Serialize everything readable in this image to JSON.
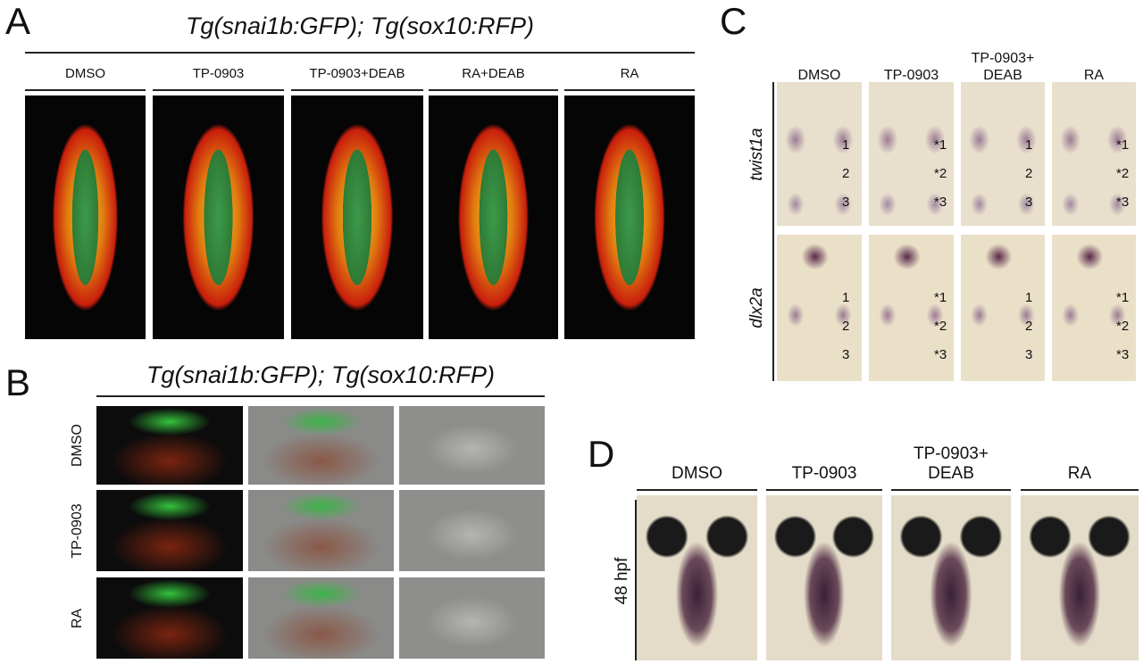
{
  "panel_a": {
    "letter": "A",
    "title": "Tg(snai1b:GFP); Tg(sox10:RFP)",
    "columns": [
      "DMSO",
      "TP-0903",
      "TP-0903+DEAB",
      "RA+DEAB",
      "RA"
    ]
  },
  "panel_b": {
    "letter": "B",
    "title": "Tg(snai1b:GFP); Tg(sox10:RFP)",
    "rows": [
      "DMSO",
      "TP-0903",
      "RA"
    ]
  },
  "panel_c": {
    "letter": "C",
    "columns": [
      "DMSO",
      "TP-0903",
      "TP-0903+ DEAB",
      "RA"
    ],
    "rows": [
      {
        "gene": "twist1a",
        "labels": [
          [
            "1",
            "2",
            "3"
          ],
          [
            "*1",
            "*2",
            "*3"
          ],
          [
            "1",
            "2",
            "3"
          ],
          [
            "*1",
            "*2",
            "*3"
          ]
        ]
      },
      {
        "gene": "dlx2a",
        "labels": [
          [
            "1",
            "2",
            "3"
          ],
          [
            "*1",
            "*2",
            "*3"
          ],
          [
            "1",
            "2",
            "3"
          ],
          [
            "*1",
            "*2",
            "*3"
          ]
        ]
      }
    ]
  },
  "panel_d": {
    "letter": "D",
    "columns": [
      "DMSO",
      "TP-0903",
      "TP-0903+ DEAB",
      "RA"
    ],
    "row_label": "48 hpf"
  }
}
